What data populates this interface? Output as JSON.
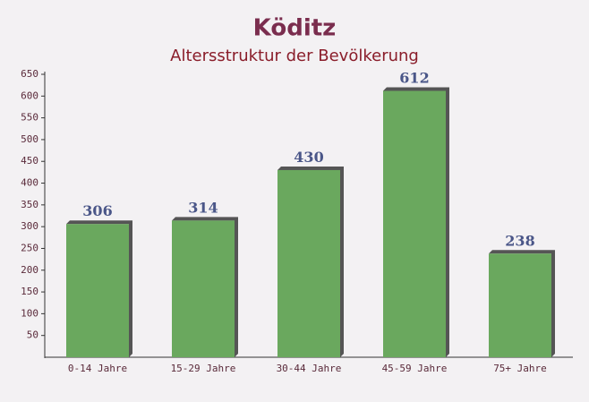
{
  "chart_data": {
    "type": "bar",
    "title": "Köditz",
    "subtitle": "Altersstruktur der Bevölkerung",
    "categories": [
      "0-14 Jahre",
      "15-29 Jahre",
      "30-44 Jahre",
      "45-59 Jahre",
      "75+ Jahre"
    ],
    "values": [
      306,
      314,
      430,
      612,
      238
    ],
    "color": "#6aa85e",
    "ylim": [
      0,
      650
    ],
    "yticks": [
      50,
      100,
      150,
      200,
      250,
      300,
      350,
      400,
      450,
      500,
      550,
      600,
      650
    ]
  }
}
